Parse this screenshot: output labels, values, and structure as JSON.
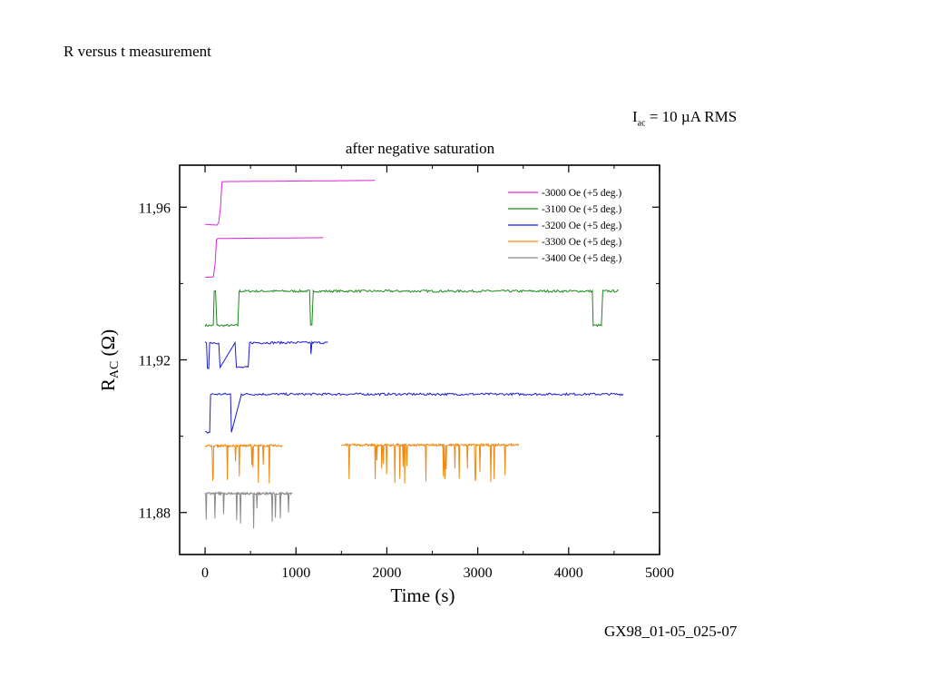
{
  "page": {
    "title": "R versus t measurement",
    "current_label_main": "I",
    "current_label_sub": "ac",
    "current_label_rest": " = 10 µA RMS",
    "footer_id": "GX98_01-05_025-07"
  },
  "chart_data": {
    "type": "line",
    "title": "after negative saturation",
    "xlabel": "Time (s)",
    "ylabel_main": "R",
    "ylabel_sub": "AC",
    "ylabel_rest": " (Ω)",
    "xlim": [
      -280,
      5000
    ],
    "ylim": [
      11.869,
      11.971
    ],
    "x_ticks": [
      0,
      1000,
      2000,
      3000,
      4000,
      5000
    ],
    "x_tick_labels": [
      "0",
      "1000",
      "2000",
      "3000",
      "4000",
      "5000"
    ],
    "y_ticks": [
      11.88,
      11.92,
      11.96
    ],
    "y_tick_labels": [
      "11,88",
      "11,92",
      "11,96"
    ],
    "grid": false,
    "legend_position": "top-right",
    "series": [
      {
        "name": "-3000 Oe (+5 deg.)",
        "color": "#e020e0"
      },
      {
        "name": "-3100 Oe (+5 deg.)",
        "color": "#1a8a1a"
      },
      {
        "name": "-3200 Oe (+5 deg.)",
        "color": "#1a1ad6"
      },
      {
        "name": "-3300 Oe (+5 deg.)",
        "color": "#f08a10"
      },
      {
        "name": "-3400 Oe (+5 deg.)",
        "color": "#8a8a8a"
      }
    ],
    "traces": [
      {
        "series": 0,
        "x": [
          0,
          130,
          150,
          170,
          185,
          200,
          1870
        ],
        "y": [
          11.9555,
          11.9553,
          11.956,
          11.96,
          11.9665,
          11.9667,
          11.967
        ]
      },
      {
        "series": 0,
        "x": [
          0,
          90,
          110,
          125,
          140,
          1300
        ],
        "y": [
          11.9416,
          11.9417,
          11.945,
          11.9515,
          11.9518,
          11.952
        ]
      },
      {
        "series": 1,
        "x": [
          0,
          90,
          100,
          115,
          130,
          360,
          375,
          385,
          1150,
          1160,
          1175,
          1190,
          4260,
          4270,
          4360,
          4375,
          4550
        ],
        "y": [
          11.929,
          11.929,
          11.938,
          11.938,
          11.929,
          11.929,
          11.938,
          11.938,
          11.938,
          11.929,
          11.929,
          11.938,
          11.938,
          11.929,
          11.929,
          11.938,
          11.938
        ]
      },
      {
        "series": 2,
        "x": [
          0,
          15,
          25,
          40,
          50,
          150,
          165,
          330,
          345,
          475,
          490,
          1160,
          1165,
          1175,
          1350
        ],
        "y": [
          11.9245,
          11.9245,
          11.918,
          11.918,
          11.9245,
          11.9245,
          11.918,
          11.9245,
          11.918,
          11.918,
          11.9245,
          11.9245,
          11.9215,
          11.9245,
          11.9245
        ]
      },
      {
        "series": 2,
        "x": [
          0,
          50,
          60,
          280,
          290,
          400,
          410,
          4600
        ],
        "y": [
          11.901,
          11.901,
          11.911,
          11.911,
          11.901,
          11.911,
          11.911,
          11.911
        ]
      },
      {
        "series": 3,
        "x": [
          0,
          850
        ],
        "y": [
          11.8975,
          11.8975
        ]
      },
      {
        "series": 3,
        "x": [
          1500,
          3450
        ],
        "y": [
          11.8977,
          11.8977
        ]
      },
      {
        "series": 4,
        "x": [
          0,
          960
        ],
        "y": [
          11.885,
          11.885
        ]
      }
    ]
  }
}
